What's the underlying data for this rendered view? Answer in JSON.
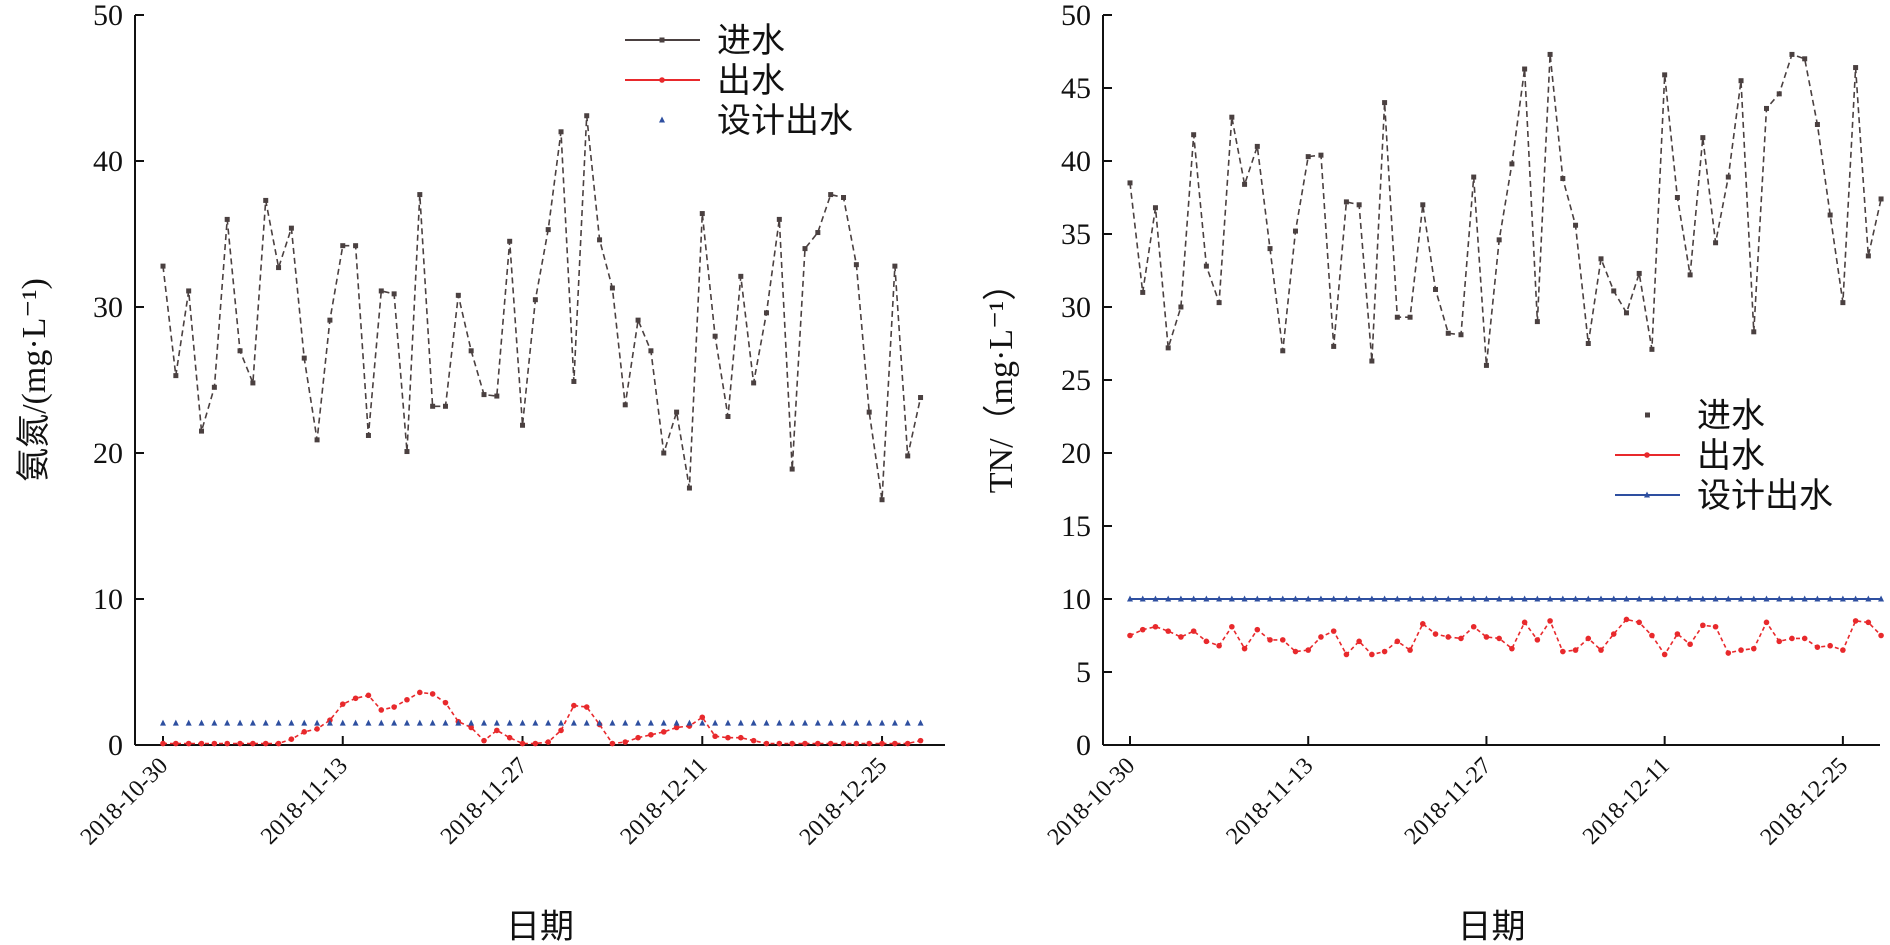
{
  "colors": {
    "influent": "#4a4040",
    "effluent": "#e8292c",
    "design": "#2e4fa0",
    "axis": "#111111"
  },
  "chart_data": [
    {
      "type": "line",
      "ylabel": "氨氮/(mg·L⁻¹)",
      "xlabel": "日期",
      "ylim": [
        0,
        50
      ],
      "yticks": [
        0,
        10,
        20,
        30,
        40,
        50
      ],
      "x_start": "2018-10-30",
      "x_ticks": [
        "2018-10-30",
        "2018-11-13",
        "2018-11-27",
        "2018-12-11",
        "2018-12-25"
      ],
      "legend_position": "top-right",
      "series": [
        {
          "name": "进水",
          "style": "line-square",
          "values": [
            32.8,
            25.3,
            31.1,
            21.5,
            24.5,
            36,
            27,
            24.8,
            37.3,
            32.7,
            35.4,
            26.5,
            20.9,
            29.1,
            34.2,
            34.2,
            21.2,
            31.1,
            30.9,
            20.1,
            37.7,
            23.2,
            23.2,
            30.8,
            27,
            24,
            23.9,
            34.5,
            21.9,
            30.5,
            35.3,
            42,
            24.9,
            43.1,
            34.6,
            31.3,
            23.3,
            29.1,
            27,
            20,
            22.8,
            17.6,
            36.4,
            28,
            22.5,
            32.1,
            24.8,
            29.6,
            36,
            18.9,
            34,
            35.1,
            37.7,
            37.5,
            32.9,
            22.8,
            16.8,
            32.8,
            19.8,
            23.8
          ]
        },
        {
          "name": "出水",
          "style": "line-dot",
          "values": [
            0.1,
            0.1,
            0.1,
            0.1,
            0.1,
            0.1,
            0.1,
            0.1,
            0.1,
            0.1,
            0.4,
            0.9,
            1.1,
            1.7,
            2.8,
            3.2,
            3.4,
            2.4,
            2.6,
            3.1,
            3.6,
            3.5,
            2.9,
            1.6,
            1.2,
            0.3,
            1,
            0.5,
            0.1,
            0.1,
            0.2,
            1,
            2.7,
            2.6,
            1.4,
            0.1,
            0.2,
            0.5,
            0.7,
            0.9,
            1.2,
            1.3,
            1.9,
            0.6,
            0.5,
            0.5,
            0.3,
            0.1,
            0.1,
            0.1,
            0.1,
            0.1,
            0.1,
            0.1,
            0.1,
            0.1,
            0.1,
            0.1,
            0.1,
            0.3
          ]
        },
        {
          "name": "设计出水",
          "style": "markers-only",
          "values": [
            1.5,
            1.5,
            1.5,
            1.5,
            1.5,
            1.5,
            1.5,
            1.5,
            1.5,
            1.5,
            1.5,
            1.5,
            1.5,
            1.5,
            1.5,
            1.5,
            1.5,
            1.5,
            1.5,
            1.5,
            1.5,
            1.5,
            1.5,
            1.5,
            1.5,
            1.5,
            1.5,
            1.5,
            1.5,
            1.5,
            1.5,
            1.5,
            1.5,
            1.5,
            1.5,
            1.5,
            1.5,
            1.5,
            1.5,
            1.5,
            1.5,
            1.5,
            1.5,
            1.5,
            1.5,
            1.5,
            1.5,
            1.5,
            1.5,
            1.5,
            1.5,
            1.5,
            1.5,
            1.5,
            1.5,
            1.5,
            1.5,
            1.5,
            1.5,
            1.5
          ]
        }
      ]
    },
    {
      "type": "line",
      "ylabel": "TN/（mg·L⁻¹）",
      "xlabel": "日期",
      "ylim": [
        0,
        50
      ],
      "yticks": [
        0,
        5,
        10,
        15,
        20,
        25,
        30,
        35,
        40,
        45,
        50
      ],
      "x_start": "2018-10-30",
      "x_ticks": [
        "2018-10-30",
        "2018-11-13",
        "2018-11-27",
        "2018-12-11",
        "2018-12-25"
      ],
      "legend_position": "center-right",
      "series": [
        {
          "name": "进水",
          "style": "markers-only",
          "values": [
            38.5,
            31,
            36.8,
            27.2,
            30,
            41.8,
            32.8,
            30.3,
            43,
            38.4,
            41,
            34,
            27,
            35.2,
            40.3,
            40.4,
            27.3,
            37.2,
            37,
            26.3,
            44,
            29.3,
            29.3,
            37,
            31.2,
            28.2,
            28.1,
            38.9,
            26,
            34.6,
            39.8,
            46.3,
            29,
            47.3,
            38.8,
            35.6,
            27.5,
            33.3,
            31.1,
            29.6,
            32.3,
            27.1,
            45.9,
            37.5,
            32.2,
            41.6,
            34.4,
            38.9,
            45.5,
            28.3,
            43.6,
            44.6,
            47.3,
            47,
            42.5,
            36.3,
            30.3,
            46.4,
            33.5,
            37.4
          ]
        },
        {
          "name": "出水",
          "style": "line-dot",
          "values": [
            7.5,
            7.9,
            8.1,
            7.8,
            7.4,
            7.8,
            7.1,
            6.8,
            8.1,
            6.6,
            7.9,
            7.2,
            7.2,
            6.4,
            6.5,
            7.4,
            7.8,
            6.2,
            7.1,
            6.2,
            6.4,
            7.1,
            6.5,
            8.3,
            7.6,
            7.4,
            7.3,
            8.1,
            7.4,
            7.3,
            6.6,
            8.4,
            7.2,
            8.5,
            6.4,
            6.5,
            7.3,
            6.5,
            7.6,
            8.6,
            8.4,
            7.5,
            6.2,
            7.6,
            6.9,
            8.2,
            8.1,
            6.3,
            6.5,
            6.6,
            8.4,
            7.1,
            7.3,
            7.3,
            6.7,
            6.8,
            6.5,
            8.5,
            8.4,
            7.5
          ]
        },
        {
          "name": "设计出水",
          "style": "line-marker",
          "values": [
            10,
            10,
            10,
            10,
            10,
            10,
            10,
            10,
            10,
            10,
            10,
            10,
            10,
            10,
            10,
            10,
            10,
            10,
            10,
            10,
            10,
            10,
            10,
            10,
            10,
            10,
            10,
            10,
            10,
            10,
            10,
            10,
            10,
            10,
            10,
            10,
            10,
            10,
            10,
            10,
            10,
            10,
            10,
            10,
            10,
            10,
            10,
            10,
            10,
            10,
            10,
            10,
            10,
            10,
            10,
            10,
            10,
            10,
            10,
            10
          ]
        }
      ]
    }
  ]
}
